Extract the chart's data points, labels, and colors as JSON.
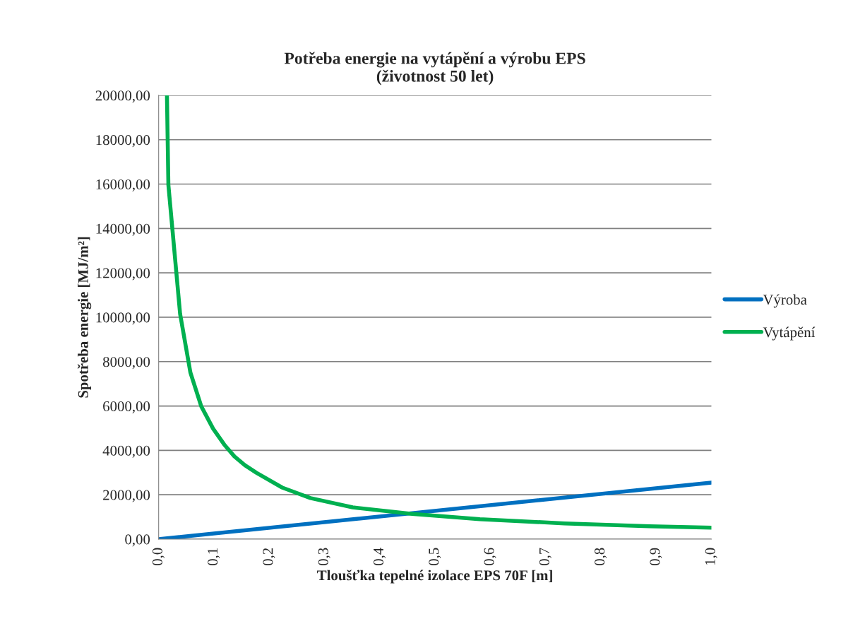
{
  "chart_data": {
    "type": "line",
    "title": "Potřeba energie na vytápění a výrobu EPS\n(životnost 50 let)",
    "xlabel": "Tloušťka tepelné izolace EPS 70F [m]",
    "ylabel": "Spotřeba energie [MJ/m²]",
    "xlim": [
      0,
      1.0
    ],
    "ylim": [
      0,
      20000
    ],
    "xticks": [
      {
        "value": 0,
        "label": "0,0"
      },
      {
        "value": 0.1,
        "label": "0,1"
      },
      {
        "value": 0.2,
        "label": "0,2"
      },
      {
        "value": 0.3,
        "label": "0,3"
      },
      {
        "value": 0.4,
        "label": "0,4"
      },
      {
        "value": 0.5,
        "label": "0,5"
      },
      {
        "value": 0.6,
        "label": "0,6"
      },
      {
        "value": 0.7,
        "label": "0,7"
      },
      {
        "value": 0.8,
        "label": "0,8"
      },
      {
        "value": 0.9,
        "label": "0,9"
      },
      {
        "value": 1.0,
        "label": "1,0"
      }
    ],
    "yticks": [
      {
        "value": 0,
        "label": "0,00"
      },
      {
        "value": 2000,
        "label": "2000,00"
      },
      {
        "value": 4000,
        "label": "4000,00"
      },
      {
        "value": 6000,
        "label": "6000,00"
      },
      {
        "value": 8000,
        "label": "8000,00"
      },
      {
        "value": 10000,
        "label": "10000,00"
      },
      {
        "value": 12000,
        "label": "12000,00"
      },
      {
        "value": 14000,
        "label": "14000,00"
      },
      {
        "value": 16000,
        "label": "16000,00"
      },
      {
        "value": 18000,
        "label": "18000,00"
      },
      {
        "value": 20000,
        "label": "20000,00"
      }
    ],
    "grid": "y",
    "legend": "right",
    "marker": "none",
    "line_style": "solid",
    "series": [
      {
        "name": "Výroba",
        "color": "#0070c0",
        "x": [
          0,
          1.0
        ],
        "values": [
          0,
          2550
        ]
      },
      {
        "name": "Vytápění",
        "color": "#00b050",
        "x": [
          0.015,
          0.0176,
          0.0388,
          0.0575,
          0.077,
          0.0985,
          0.1187,
          0.137,
          0.156,
          0.177,
          0.2235,
          0.2746,
          0.351,
          0.4585,
          0.581,
          0.734,
          0.8876,
          1.0
        ],
        "values": [
          20000,
          15960,
          10150,
          7500,
          5990,
          4980,
          4260,
          3730,
          3330,
          2990,
          2325,
          1850,
          1430,
          1140,
          900,
          710,
          580,
          520
        ]
      }
    ]
  }
}
